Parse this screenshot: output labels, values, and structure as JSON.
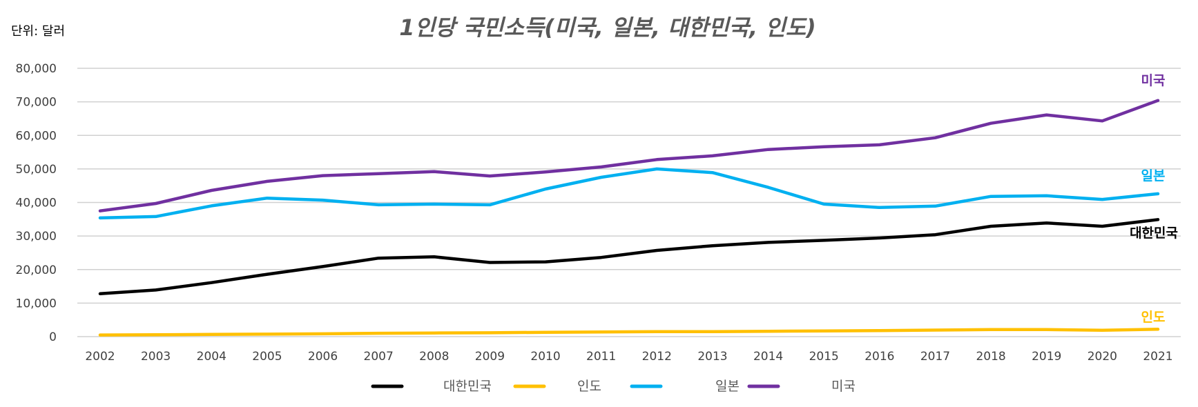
{
  "chart_data": {
    "type": "line",
    "title": "1인당 국민소득(미국, 일본, 대한민국, 인도)",
    "unit_label": "단위: 달러",
    "x": [
      "2002",
      "2003",
      "2004",
      "2005",
      "2006",
      "2007",
      "2008",
      "2009",
      "2010",
      "2011",
      "2012",
      "2013",
      "2014",
      "2015",
      "2016",
      "2017",
      "2018",
      "2019",
      "2020",
      "2021"
    ],
    "y_ticks": [
      "0",
      "10,000",
      "20,000",
      "30,000",
      "40,000",
      "50,000",
      "60,000",
      "70,000",
      "80,000"
    ],
    "ylim": [
      0,
      80000
    ],
    "grid": true,
    "legend_position": "bottom",
    "series": [
      {
        "name": "대한민국",
        "color": "#000000",
        "values": [
          12800,
          13900,
          16100,
          18600,
          20900,
          23400,
          23800,
          22100,
          22300,
          23600,
          25700,
          27100,
          28100,
          28700,
          29400,
          30400,
          32900,
          33900,
          32900,
          34900
        ]
      },
      {
        "name": "인도",
        "color": "#FFC000",
        "values": [
          500,
          550,
          650,
          750,
          850,
          1000,
          1100,
          1150,
          1300,
          1400,
          1500,
          1500,
          1600,
          1700,
          1800,
          1950,
          2100,
          2100,
          1900,
          2200
        ]
      },
      {
        "name": "일본",
        "color": "#00B0F0",
        "values": [
          35400,
          35800,
          39000,
          41300,
          40700,
          39300,
          39500,
          39300,
          44000,
          47500,
          50000,
          48900,
          44500,
          39500,
          38500,
          38900,
          41800,
          42000,
          40900,
          42600
        ]
      },
      {
        "name": "미국",
        "color": "#7030A0",
        "values": [
          37500,
          39700,
          43600,
          46300,
          48000,
          48600,
          49200,
          47900,
          49100,
          50600,
          52800,
          53900,
          55800,
          56600,
          57200,
          59300,
          63600,
          66100,
          64300,
          70400
        ]
      }
    ]
  }
}
